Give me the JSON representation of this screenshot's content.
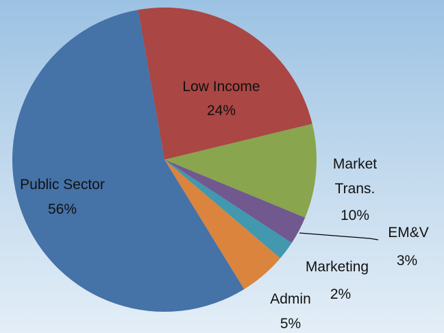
{
  "chart_data": {
    "type": "pie",
    "categories": [
      "Low Income",
      "Market Trans.",
      "EM&V",
      "Marketing",
      "Admin",
      "Public Sector"
    ],
    "values": [
      24,
      10,
      3,
      2,
      5,
      56
    ],
    "value_labels": [
      "24%",
      "10%",
      "3%",
      "2%",
      "5%",
      "56%"
    ],
    "colors": [
      "#aa4643",
      "#89a54e",
      "#71588f",
      "#4198af",
      "#db843d",
      "#4572a7"
    ]
  }
}
